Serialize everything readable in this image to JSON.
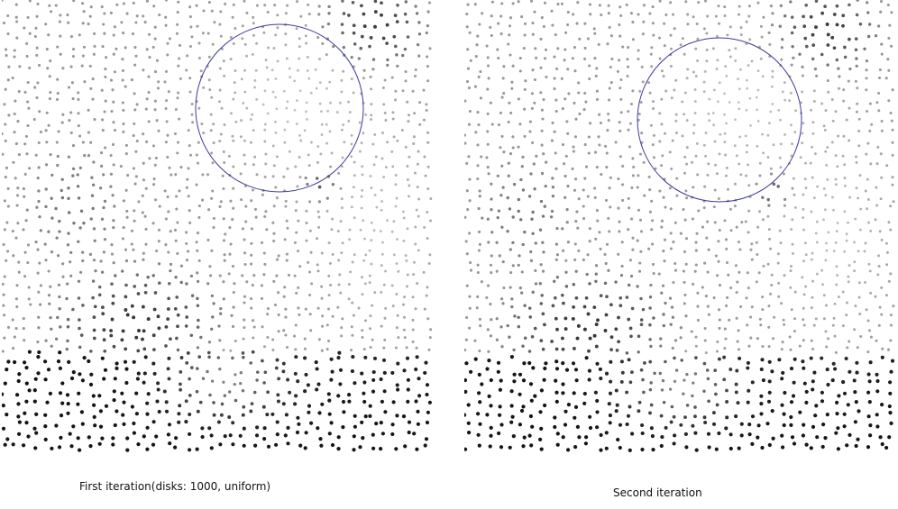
{
  "captions": {
    "first": "First iteration(disks: 1000, uniform)",
    "second": "Second iteration"
  },
  "colors": {
    "background": "#ffffff",
    "dot_dark": "#000000",
    "dot_light": "#cfcfcf",
    "circle_stroke": "#3a3a9a"
  },
  "panels": [
    {
      "id": "first",
      "seed": 12345
    },
    {
      "id": "second",
      "seed": 98765
    }
  ]
}
